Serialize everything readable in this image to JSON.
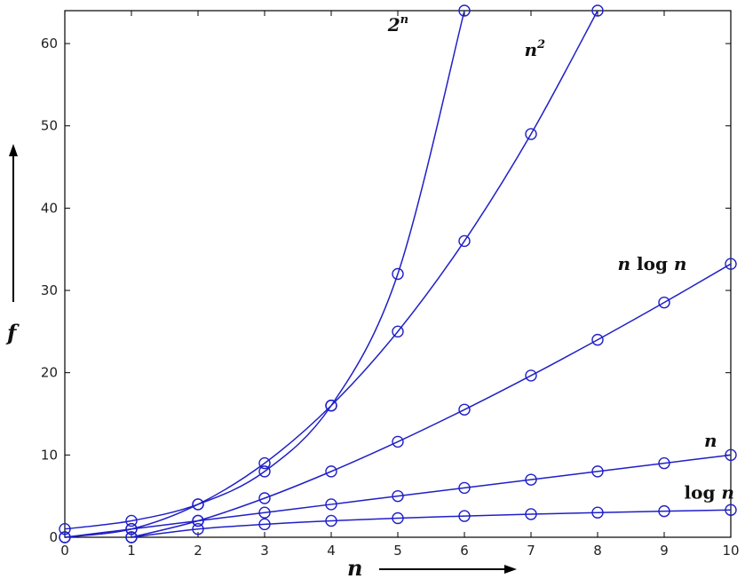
{
  "colors": {
    "series": "#1f1fc8",
    "axis": "#000000",
    "background": "#ffffff"
  },
  "chart_data": {
    "type": "line",
    "title": "",
    "xlabel": "n",
    "ylabel": "f",
    "xlim": [
      0,
      10
    ],
    "ylim": [
      0,
      64
    ],
    "x_ticks": [
      0,
      1,
      2,
      3,
      4,
      5,
      6,
      7,
      8,
      9,
      10
    ],
    "y_ticks": [
      0,
      10,
      20,
      30,
      40,
      50,
      60
    ],
    "grid": false,
    "marker": "circle",
    "series": [
      {
        "name": "2^n",
        "label_main": "2",
        "label_sup": "n",
        "label_rest": "",
        "label_value": [
          4.85,
          61.5
        ],
        "x": [
          0,
          1,
          2,
          3,
          4,
          5,
          6
        ],
        "y": [
          1,
          2,
          4,
          8,
          16,
          32,
          64
        ]
      },
      {
        "name": "n^2",
        "label_main": "n",
        "label_sup": "2",
        "label_rest": "",
        "label_value": [
          6.9,
          58.5
        ],
        "x": [
          0,
          1,
          2,
          3,
          4,
          5,
          6,
          7,
          8
        ],
        "y": [
          0,
          1,
          4,
          9,
          16,
          25,
          36,
          49,
          64
        ]
      },
      {
        "name": "n log n",
        "label_main": "n",
        "label_sup": "",
        "label_rest": " log n",
        "label_value": [
          8.3,
          32.5
        ],
        "x": [
          1,
          2,
          3,
          4,
          5,
          6,
          7,
          8,
          9,
          10
        ],
        "y": [
          0,
          2,
          4.75,
          8,
          11.61,
          15.51,
          19.65,
          24,
          28.53,
          33.22
        ]
      },
      {
        "name": "n",
        "label_main": "n",
        "label_sup": "",
        "label_rest": "",
        "label_value": [
          9.6,
          11.0
        ],
        "x": [
          0,
          1,
          2,
          3,
          4,
          5,
          6,
          7,
          8,
          9,
          10
        ],
        "y": [
          0,
          1,
          2,
          3,
          4,
          5,
          6,
          7,
          8,
          9,
          10
        ]
      },
      {
        "name": "log n",
        "label_main": "",
        "label_sup": "",
        "label_rest": "log n",
        "label_value": [
          9.3,
          4.7
        ],
        "x": [
          1,
          2,
          3,
          4,
          5,
          6,
          7,
          8,
          9,
          10
        ],
        "y": [
          0,
          1,
          1.58,
          2,
          2.32,
          2.58,
          2.81,
          3,
          3.17,
          3.32
        ]
      }
    ]
  }
}
